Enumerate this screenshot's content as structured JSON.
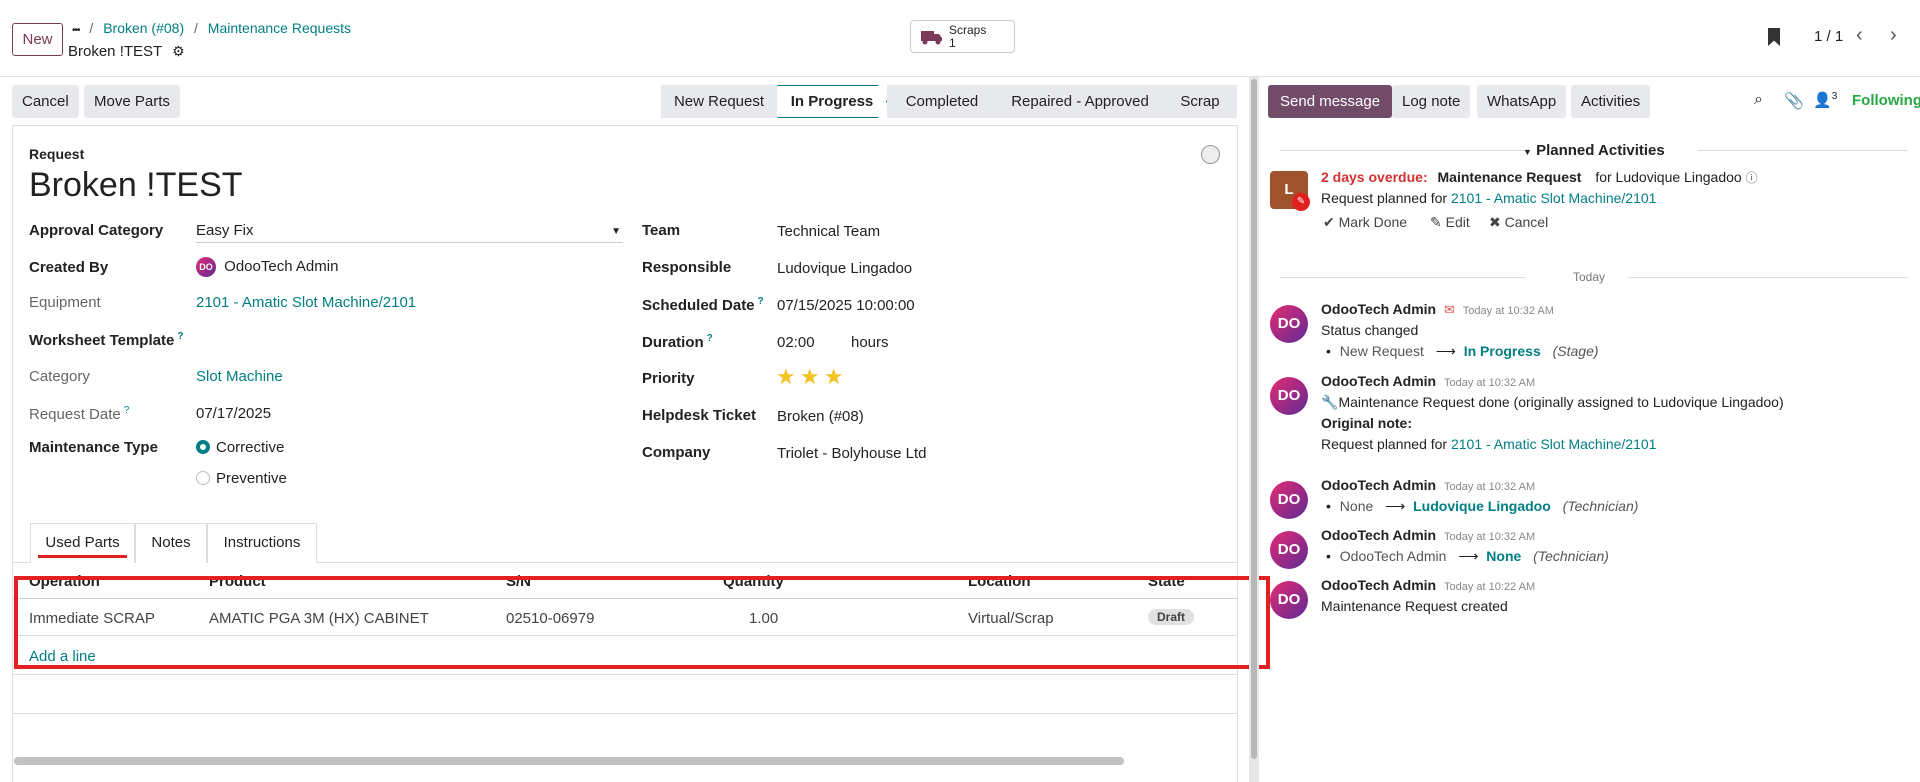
{
  "topbar": {
    "new_label": "New",
    "ellipsis": "•••",
    "crumb_sep": "/",
    "crumb1": "Broken (#08)",
    "crumb2": "Maintenance Requests",
    "record_title": "Broken !TEST",
    "scraps_label": "Scraps",
    "scraps_count": "1",
    "pager": "1 / 1"
  },
  "actions": {
    "cancel": "Cancel",
    "move_parts": "Move Parts"
  },
  "stages": [
    "New Request",
    "In Progress",
    "Completed",
    "Repaired - Approved",
    "Scrap"
  ],
  "active_stage": "In Progress",
  "form": {
    "request_label": "Request",
    "title": "Broken !TEST",
    "left": {
      "approval_category_label": "Approval Category",
      "approval_category_value": "Easy Fix",
      "created_by_label": "Created By",
      "created_by_value": "OdooTech Admin",
      "equipment_label": "Equipment",
      "equipment_value": "2101 - Amatic Slot Machine/2101",
      "worksheet_label": "Worksheet Template",
      "category_label": "Category",
      "category_value": "Slot Machine",
      "request_date_label": "Request Date",
      "request_date_value": "07/17/2025",
      "maint_type_label": "Maintenance Type",
      "corrective": "Corrective",
      "preventive": "Preventive",
      "help_mark": "?"
    },
    "right": {
      "team_label": "Team",
      "team_value": "Technical Team",
      "responsible_label": "Responsible",
      "responsible_value": "Ludovique Lingadoo",
      "scheduled_label": "Scheduled Date",
      "scheduled_value": "07/15/2025 10:00:00",
      "duration_label": "Duration",
      "duration_value": "02:00",
      "duration_unit": "hours",
      "priority_label": "Priority",
      "priority_stars": 3,
      "helpdesk_label": "Helpdesk Ticket",
      "helpdesk_value": "Broken (#08)",
      "company_label": "Company",
      "company_value": "Triolet - Bolyhouse Ltd"
    }
  },
  "tabs": [
    "Used Parts",
    "Notes",
    "Instructions"
  ],
  "parts_table": {
    "headers": [
      "Operation",
      "Product",
      "S/N",
      "Quantity",
      "Location",
      "State"
    ],
    "rows": [
      {
        "operation": "Immediate SCRAP",
        "product": "AMATIC PGA 3M (HX) CABINET",
        "sn": "02510-06979",
        "quantity": "1.00",
        "location": "Virtual/Scrap",
        "state": "Draft"
      }
    ],
    "add_line": "Add a line"
  },
  "chatter": {
    "send_message": "Send message",
    "log_note": "Log note",
    "whatsapp": "WhatsApp",
    "activities": "Activities",
    "followers_count": "3",
    "following": "Following",
    "planned_header": "Planned Activities",
    "activity": {
      "avatar_letter": "L",
      "overdue": "2 days overdue:",
      "type": "Maintenance Request",
      "for_user": "for Ludovique Lingadoo",
      "planned_prefix": "Request planned for",
      "planned_link": "2101 - Amatic Slot Machine/2101",
      "mark_done": "Mark Done",
      "edit": "Edit",
      "cancel": "Cancel"
    },
    "today_sep": "Today",
    "messages": [
      {
        "author": "OdooTech Admin",
        "time": "Today at 10:32 AM",
        "line1": "Status changed",
        "old": "New Request",
        "new": "In Progress",
        "field": "(Stage)"
      },
      {
        "author": "OdooTech Admin",
        "time": "Today at 10:32 AM",
        "line1": "Maintenance Request done (originally assigned to Ludovique Lingadoo)",
        "line2": "Original note:",
        "line3_prefix": "Request planned for",
        "line3_link": "2101 - Amatic Slot Machine/2101"
      },
      {
        "author": "OdooTech Admin",
        "time": "Today at 10:32 AM",
        "old": "None",
        "new": "Ludovique Lingadoo",
        "field": "(Technician)"
      },
      {
        "author": "OdooTech Admin",
        "time": "Today at 10:32 AM",
        "old": "OdooTech Admin",
        "new": "None",
        "field": "(Technician)"
      },
      {
        "author": "OdooTech Admin",
        "time": "Today at 10:22 AM",
        "line1": "Maintenance Request created"
      }
    ]
  }
}
